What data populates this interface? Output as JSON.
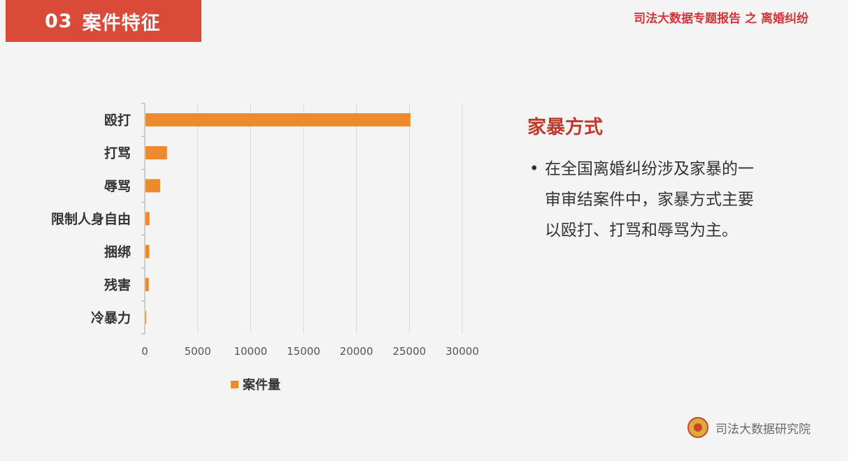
{
  "header": {
    "section_number": "03",
    "section_title": "案件特征",
    "report_title": "司法大数据专题报告 之 离婚纠纷"
  },
  "chart_data": {
    "type": "bar",
    "orientation": "horizontal",
    "categories": [
      "殴打",
      "打骂",
      "辱骂",
      "限制人身自由",
      "捆绑",
      "残害",
      "冷暴力"
    ],
    "series": [
      {
        "name": "案件量",
        "values": [
          25100,
          2100,
          1450,
          450,
          420,
          380,
          60
        ]
      }
    ],
    "xlim": [
      0,
      30000
    ],
    "xticks": [
      0,
      5000,
      10000,
      15000,
      20000,
      25000,
      30000
    ],
    "grid": true,
    "legend_position": "bottom",
    "color": "#ee8a2e"
  },
  "info": {
    "heading": "家暴方式",
    "bullet": "•",
    "text": "在全国离婚纠纷涉及家暴的一审审结案件中，家暴方式主要以殴打、打骂和辱骂为主。"
  },
  "footer": {
    "org_name": "司法大数据研究院"
  },
  "colors": {
    "banner": "#d94a38",
    "accent": "#c0392b",
    "bar": "#ee8a2e"
  }
}
